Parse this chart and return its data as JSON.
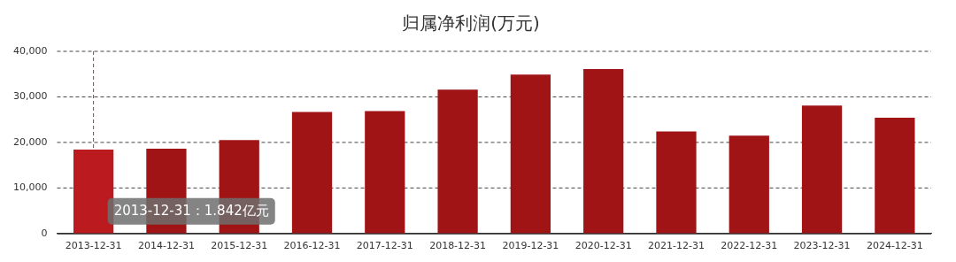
{
  "chart_data": {
    "type": "bar",
    "title": "归属净利润(万元)",
    "categories": [
      "2013-12-31",
      "2014-12-31",
      "2015-12-31",
      "2016-12-31",
      "2017-12-31",
      "2018-12-31",
      "2019-12-31",
      "2020-12-31",
      "2021-12-31",
      "2022-12-31",
      "2023-12-31",
      "2024-12-31"
    ],
    "values": [
      18420,
      18600,
      20500,
      26700,
      26900,
      31600,
      34900,
      36100,
      22400,
      21500,
      28100,
      25400
    ],
    "colors": [
      "#bb1a1e",
      "#a01416",
      "#a01416",
      "#a01416",
      "#a01416",
      "#a01416",
      "#a01416",
      "#a01416",
      "#a01416",
      "#a01416",
      "#a01416",
      "#a01416"
    ],
    "ylim": [
      0,
      40000
    ],
    "yticks": [
      {
        "value": 0,
        "label": "0"
      },
      {
        "value": 10000,
        "label": "10,000"
      },
      {
        "value": 20000,
        "label": "20,000"
      },
      {
        "value": 30000,
        "label": "30,000"
      },
      {
        "value": 40000,
        "label": "40,000"
      }
    ],
    "grid": "y",
    "legend": false,
    "ref_lines": [
      {
        "axis": "x",
        "value": "2013-12-31",
        "color": "#c0282d",
        "line_style": "dashed"
      }
    ],
    "annotations": [
      "2013-12-31：1.842亿元"
    ]
  }
}
